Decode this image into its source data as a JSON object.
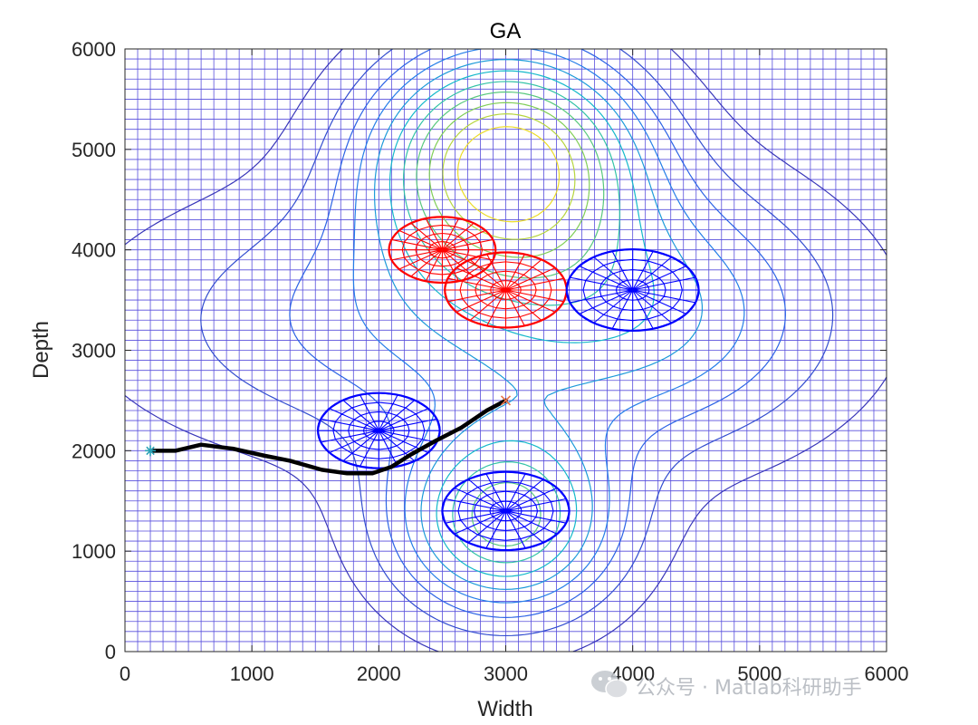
{
  "chart_data": {
    "type": "contour",
    "title": "GA",
    "xlabel": "Width",
    "ylabel": "Depth",
    "xlim": [
      0,
      6000
    ],
    "ylim": [
      0,
      6000
    ],
    "xticks": [
      "0",
      "1000",
      "2000",
      "3000",
      "4000",
      "5000",
      "6000"
    ],
    "yticks": [
      "0",
      "1000",
      "2000",
      "3000",
      "4000",
      "5000",
      "6000"
    ],
    "grid_step": 100,
    "grid_color": "#3a2fd6",
    "surface": {
      "base": 0,
      "peaks": [
        {
          "x": 3000,
          "y": 4900,
          "amplitude": 9,
          "sx": 700,
          "sy": 750
        },
        {
          "x": 3000,
          "y": 1300,
          "amplitude": 6.5,
          "sx": 600,
          "sy": 650
        },
        {
          "x": 2700,
          "y": 3300,
          "amplitude": 3.0,
          "sx": 1700,
          "sy": 900
        },
        {
          "x": 4200,
          "y": 3400,
          "amplitude": 2.2,
          "sx": 900,
          "sy": 900
        }
      ],
      "levels": [
        0.6,
        1.4,
        2.2,
        3.0,
        3.8,
        4.6,
        5.4,
        6.2,
        7.0,
        7.8,
        8.6
      ]
    },
    "threats": [
      {
        "x": 2500,
        "y": 4000,
        "r": 420,
        "color": "#ff0000"
      },
      {
        "x": 3000,
        "y": 3600,
        "r": 480,
        "color": "#ff0000"
      },
      {
        "x": 4000,
        "y": 3600,
        "r": 520,
        "color": "#0000ff"
      },
      {
        "x": 2000,
        "y": 2200,
        "r": 480,
        "color": "#0000ff"
      },
      {
        "x": 3000,
        "y": 1400,
        "r": 500,
        "color": "#0000ff"
      }
    ],
    "path": {
      "color": "#000000",
      "points": [
        [
          200,
          2000
        ],
        [
          400,
          2000
        ],
        [
          600,
          2060
        ],
        [
          850,
          2020
        ],
        [
          1100,
          1950
        ],
        [
          1300,
          1900
        ],
        [
          1550,
          1810
        ],
        [
          1750,
          1775
        ],
        [
          1950,
          1775
        ],
        [
          2100,
          1840
        ],
        [
          2250,
          1960
        ],
        [
          2450,
          2100
        ],
        [
          2650,
          2230
        ],
        [
          2850,
          2400
        ],
        [
          3000,
          2500
        ]
      ]
    },
    "start": {
      "x": 200,
      "y": 2000,
      "marker": "*",
      "color": "#2aa1b5"
    },
    "goal": {
      "x": 3000,
      "y": 2500,
      "marker": "x",
      "color": "#e8734a"
    }
  },
  "watermark": {
    "icon": "wechat-icon",
    "text": "公众号 · Matlab科研助手"
  }
}
